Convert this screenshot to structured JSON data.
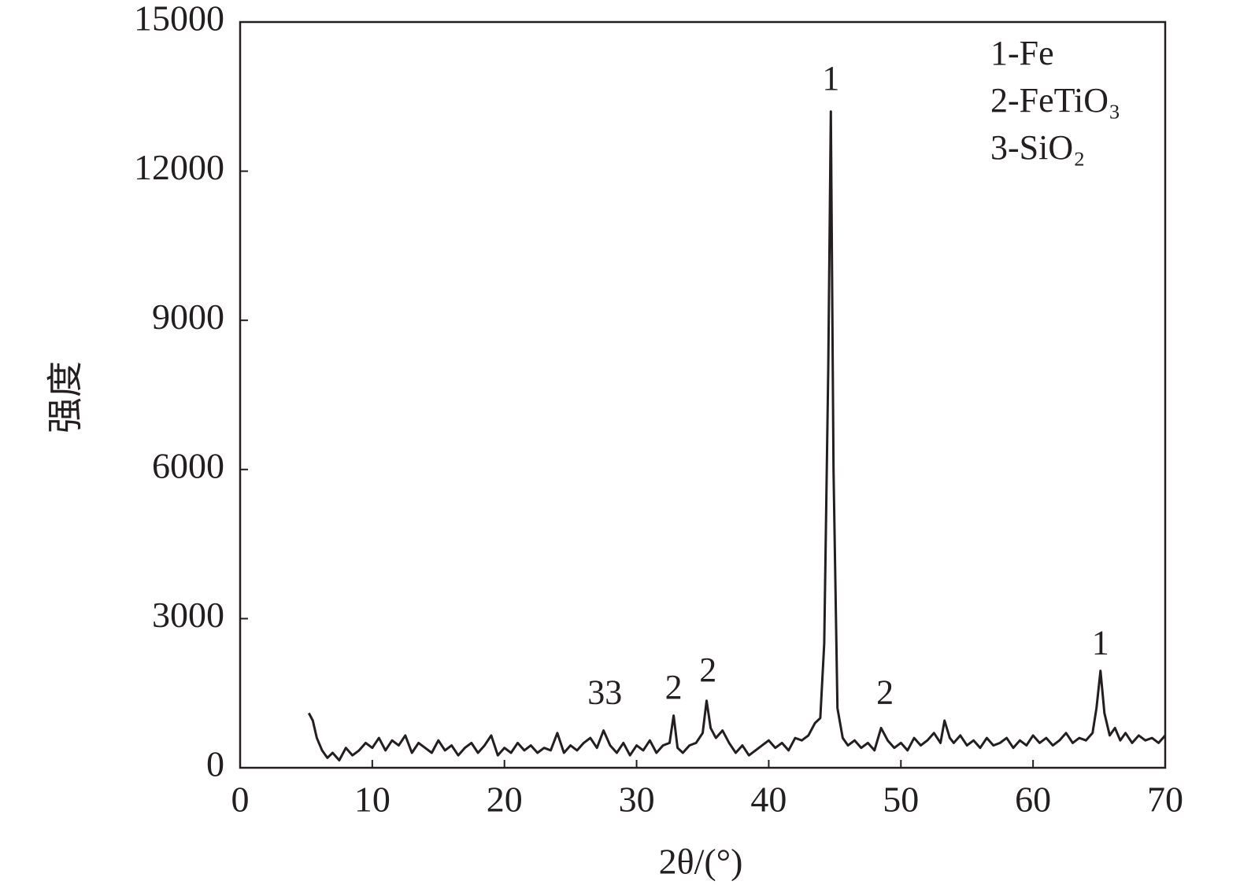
{
  "chart_data": {
    "type": "line",
    "xlabel": "2θ/(°)",
    "ylabel": "强度",
    "color": "#231f20",
    "xlim": [
      0,
      70
    ],
    "xticks": [
      0,
      10,
      20,
      30,
      40,
      50,
      60,
      70
    ],
    "ylim": [
      0,
      15000
    ],
    "yticks": [
      0,
      3000,
      6000,
      9000,
      12000,
      15000
    ],
    "legend_text": [
      "1-Fe",
      "2-FeTiO₃",
      "3-SiO₂"
    ],
    "annotations": [
      {
        "text": "1",
        "x": 44.7,
        "y": 13800
      },
      {
        "text": "33",
        "x": 27.6,
        "y": 1450
      },
      {
        "text": "2",
        "x": 32.8,
        "y": 1550
      },
      {
        "text": "2",
        "x": 35.4,
        "y": 1900
      },
      {
        "text": "2",
        "x": 48.8,
        "y": 1450
      },
      {
        "text": "1",
        "x": 65.1,
        "y": 2450
      }
    ],
    "x": [
      5.2,
      5.5,
      5.8,
      6.2,
      6.6,
      7,
      7.5,
      8,
      8.5,
      9,
      9.5,
      10,
      10.5,
      11,
      11.5,
      12,
      12.5,
      13,
      13.5,
      14,
      14.5,
      15,
      15.5,
      16,
      16.5,
      17,
      17.5,
      18,
      18.5,
      19,
      19.5,
      20,
      20.5,
      21,
      21.5,
      22,
      22.5,
      23,
      23.5,
      24,
      24.5,
      25,
      25.5,
      26,
      26.5,
      27,
      27.5,
      28,
      28.5,
      29,
      29.5,
      30,
      30.5,
      31,
      31.5,
      32,
      32.5,
      32.8,
      33.1,
      33.5,
      34,
      34.5,
      35,
      35.3,
      35.6,
      36,
      36.5,
      37,
      37.5,
      38,
      38.5,
      39,
      39.5,
      40,
      40.5,
      41,
      41.5,
      42,
      42.5,
      43,
      43.5,
      43.9,
      44.2,
      44.5,
      44.7,
      44.9,
      45.2,
      45.6,
      46,
      46.5,
      47,
      47.5,
      48,
      48.5,
      49,
      49.5,
      50,
      50.5,
      51,
      51.5,
      52,
      52.5,
      53,
      53.3,
      53.7,
      54,
      54.5,
      55,
      55.5,
      56,
      56.5,
      57,
      57.5,
      58,
      58.5,
      59,
      59.5,
      60,
      60.5,
      61,
      61.5,
      62,
      62.5,
      63,
      63.5,
      64,
      64.5,
      64.8,
      65.1,
      65.4,
      65.8,
      66.2,
      66.6,
      67,
      67.5,
      68,
      68.5,
      69,
      69.5,
      70
    ],
    "values": [
      1100,
      950,
      600,
      350,
      200,
      300,
      150,
      400,
      250,
      350,
      500,
      400,
      600,
      350,
      550,
      450,
      650,
      300,
      500,
      400,
      300,
      550,
      350,
      450,
      250,
      400,
      500,
      300,
      450,
      650,
      250,
      400,
      300,
      500,
      350,
      450,
      300,
      400,
      350,
      700,
      300,
      450,
      350,
      500,
      600,
      400,
      750,
      450,
      300,
      500,
      250,
      450,
      350,
      550,
      300,
      450,
      500,
      1050,
      400,
      300,
      450,
      500,
      700,
      1350,
      800,
      600,
      750,
      500,
      300,
      450,
      250,
      350,
      450,
      550,
      400,
      500,
      350,
      600,
      550,
      650,
      900,
      1000,
      2500,
      8000,
      13200,
      6000,
      1200,
      600,
      450,
      550,
      400,
      500,
      350,
      800,
      550,
      400,
      500,
      350,
      600,
      450,
      550,
      700,
      500,
      950,
      600,
      500,
      650,
      450,
      550,
      400,
      600,
      450,
      500,
      600,
      400,
      550,
      450,
      650,
      500,
      600,
      450,
      550,
      700,
      500,
      600,
      550,
      700,
      1200,
      1950,
      1100,
      650,
      800,
      550,
      700,
      500,
      650,
      550,
      600,
      500,
      650
    ]
  }
}
